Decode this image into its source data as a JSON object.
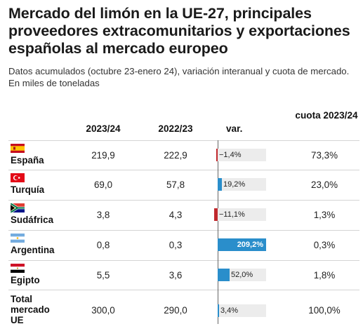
{
  "title": "Mercado del limón en la UE-27, principales proveedores extracomunitarios y exportaciones españolas al mercado europeo",
  "subtitle": "Datos acumulados (octubre 23-enero 24), variación interanual y cuota de mercado. En miles de toneladas",
  "columns": {
    "c2023": "2023/24",
    "c2022": "2022/23",
    "var": "var.",
    "share": "cuota 2023/24"
  },
  "colors": {
    "positive": "#2a8ecb",
    "negative": "#c0282d",
    "track": "#ececec"
  },
  "chart_data": {
    "type": "table",
    "title": "Mercado del limón en la UE-27, principales proveedores extracomunitarios y exportaciones españolas al mercado europeo",
    "rows": [
      {
        "country": "España",
        "flag": "spain-flag-icon",
        "v2023": "219,9",
        "v2022": "222,9",
        "var": -1.4,
        "var_label": "−1,4%",
        "share": "73,3%"
      },
      {
        "country": "Turquía",
        "flag": "turkey-flag-icon",
        "v2023": "69,0",
        "v2022": "57,8",
        "var": 19.2,
        "var_label": "19,2%",
        "share": "23,0%"
      },
      {
        "country": "Sudáfrica",
        "flag": "south-africa-flag-icon",
        "v2023": "3,8",
        "v2022": "4,3",
        "var": -11.1,
        "var_label": "−11,1%",
        "share": "1,3%"
      },
      {
        "country": "Argentina",
        "flag": "argentina-flag-icon",
        "v2023": "0,8",
        "v2022": "0,3",
        "var": 209.2,
        "var_label": "209,2%",
        "share": "0,3%"
      },
      {
        "country": "Egipto",
        "flag": "egypt-flag-icon",
        "v2023": "5,5",
        "v2022": "3,6",
        "var": 52.0,
        "var_label": "52,0%",
        "share": "1,8%"
      },
      {
        "country": "Total mercado UE",
        "flag": "",
        "v2023": "300,0",
        "v2022": "290,0",
        "var": 3.4,
        "var_label": "3,4%",
        "share": "100,0%"
      }
    ],
    "var_range": [
      -11.1,
      209.2
    ]
  }
}
